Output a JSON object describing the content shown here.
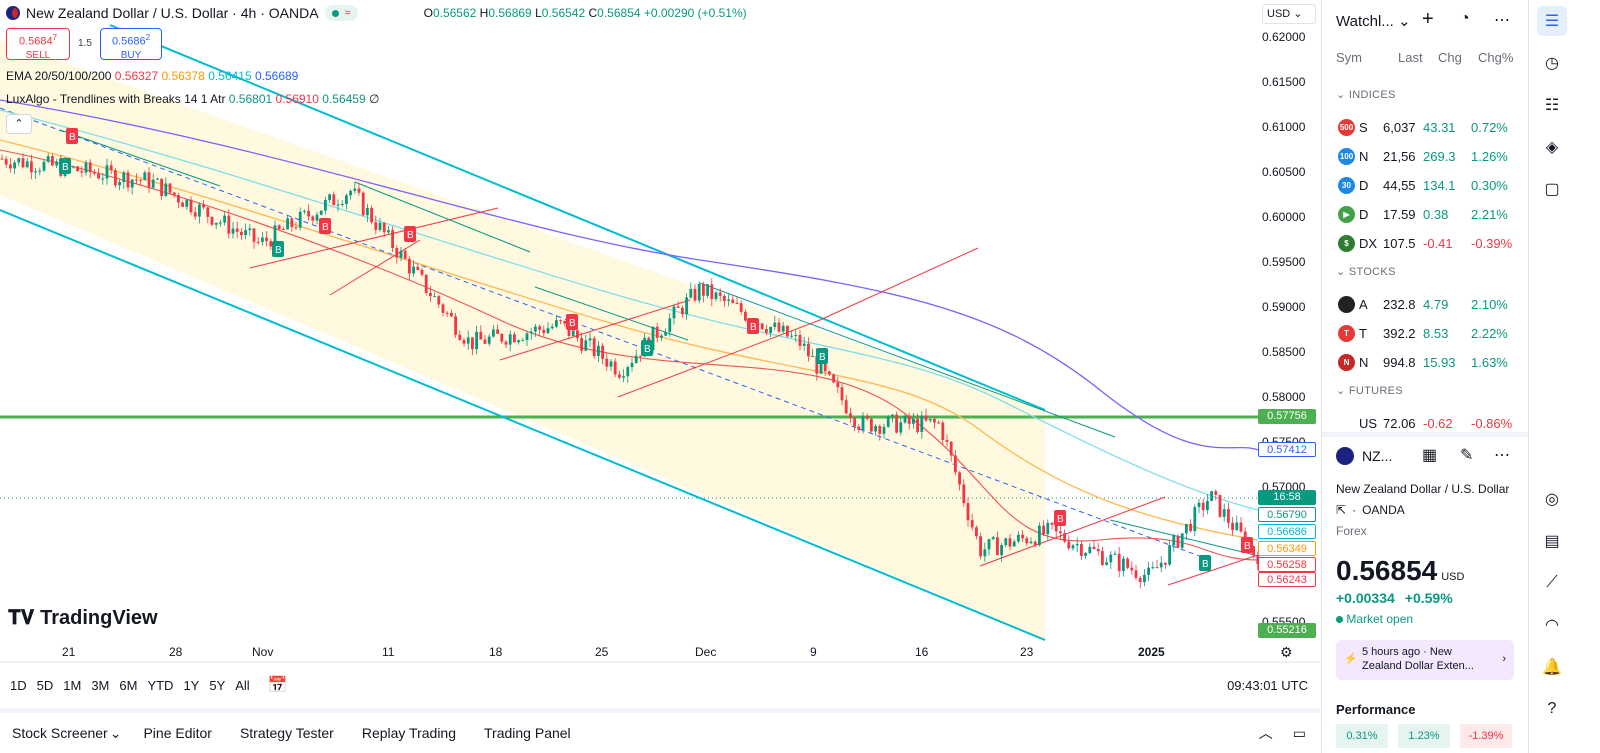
{
  "header": {
    "symbol_title": "New Zealand Dollar / U.S. Dollar · 4h · OANDA",
    "ohlc": {
      "O": "0.56562",
      "H": "0.56869",
      "L": "0.56542",
      "C": "0.56854",
      "change": "+0.00290 (+0.51%)"
    },
    "sell": {
      "price": "0.5684",
      "sup": "7",
      "label": "SELL"
    },
    "buy": {
      "price": "0.5686",
      "sup": "2",
      "label": "BUY"
    },
    "spread": "1.5",
    "currency_select": "USD"
  },
  "indicators": {
    "ema": {
      "label": "EMA 20/50/100/200",
      "values": [
        "0.56327",
        "0.56378",
        "0.56415",
        "0.56689"
      ],
      "colors": [
        "#f23645",
        "#ff9800",
        "#00e5ff",
        "#2962ff"
      ]
    },
    "luxalgo": {
      "label": "LuxAlgo - Trendlines with Breaks 14 1 Atr",
      "values": [
        "0.56801",
        "0.56910",
        "0.56459"
      ],
      "tail": "∅"
    }
  },
  "price_axis": {
    "ticks": [
      "0.62000",
      "0.61500",
      "0.61000",
      "0.60500",
      "0.60000",
      "0.59500",
      "0.59000",
      "0.58500",
      "0.58000",
      "0.57500",
      "0.57000",
      "0.56500",
      "0.56000",
      "0.55500"
    ],
    "labels": [
      {
        "text": "0.57756",
        "bg": "#4caf50"
      },
      {
        "text": "0.57412",
        "bg": "#ffffff",
        "fg": "#2962ff"
      },
      {
        "text": "16:58",
        "bg": "#089981"
      },
      {
        "text": "0.56790",
        "bg": "#ffffff",
        "fg": "#089981"
      },
      {
        "text": "0.56686",
        "bg": "#ffffff",
        "fg": "#00bcd4"
      },
      {
        "text": "0.56349",
        "bg": "#ffffff",
        "fg": "#ff9800"
      },
      {
        "text": "0.56258",
        "bg": "#ffffff",
        "fg": "#f23645"
      },
      {
        "text": "0.56243",
        "bg": "#ffffff",
        "fg": "#f23645"
      },
      {
        "text": "0.55216",
        "bg": "#4caf50"
      }
    ]
  },
  "time_axis": {
    "ticks": [
      "21",
      "28",
      "Nov",
      "11",
      "18",
      "25",
      "Dec",
      "9",
      "16",
      "23",
      "2025"
    ]
  },
  "logo": "TradingView",
  "timeframes": [
    "1D",
    "5D",
    "1M",
    "3M",
    "6M",
    "YTD",
    "1Y",
    "5Y",
    "All"
  ],
  "clock": "09:43:01 UTC",
  "panels": [
    "Stock Screener",
    "Pine Editor",
    "Strategy Tester",
    "Replay Trading",
    "Trading Panel"
  ],
  "watchlist": {
    "title": "Watchl...",
    "columns": [
      "Sym",
      "Last",
      "Chg",
      "Chg%"
    ],
    "sections": [
      {
        "name": "INDICES",
        "rows": [
          {
            "badge": "500",
            "badge_color": "#e53935",
            "sym": "S",
            "last": "6,037",
            "chg": "43.31",
            "chgp": "0.72%",
            "dir": "pos"
          },
          {
            "badge": "100",
            "badge_color": "#1e88e5",
            "sym": "N",
            "last": "21,56",
            "chg": "269.3",
            "chgp": "1.26%",
            "dir": "pos"
          },
          {
            "badge": "30",
            "badge_color": "#1e88e5",
            "sym": "D",
            "last": "44,55",
            "chg": "134.1",
            "chgp": "0.30%",
            "dir": "pos"
          },
          {
            "badge": "▶",
            "badge_color": "#43a047",
            "sym": "D",
            "last": "17.59",
            "chg": "0.38",
            "chgp": "2.21%",
            "dir": "pos"
          },
          {
            "badge": "$",
            "badge_color": "#2e7d32",
            "sym": "DX",
            "last": "107.5",
            "chg": "-0.41",
            "chgp": "-0.39%",
            "dir": "neg"
          }
        ]
      },
      {
        "name": "STOCKS",
        "rows": [
          {
            "badge": "",
            "badge_color": "#222222",
            "sym": "A",
            "last": "232.8",
            "chg": "4.79",
            "chgp": "2.10%",
            "dir": "pos"
          },
          {
            "badge": "T",
            "badge_color": "#e53935",
            "sym": "T",
            "last": "392.2",
            "chg": "8.53",
            "chgp": "2.22%",
            "dir": "pos"
          },
          {
            "badge": "N",
            "badge_color": "#c62828",
            "sym": "N",
            "last": "994.8",
            "chg": "15.93",
            "chgp": "1.63%",
            "dir": "pos"
          }
        ]
      },
      {
        "name": "FUTURES",
        "rows": [
          {
            "badge": "",
            "badge_color": "#ffffff",
            "sym": "US",
            "last": "72.06",
            "chg": "-0.62",
            "chgp": "-0.86%",
            "dir": "neg"
          }
        ]
      }
    ]
  },
  "details": {
    "short": "NZ...",
    "name": "New Zealand Dollar / U.S. Dollar",
    "exchange": "OANDA",
    "type": "Forex",
    "price_main": "0.568",
    "price_big": "54",
    "currency": "USD",
    "change": "+0.00334",
    "change_pct": "+0.59%",
    "market": "Market open",
    "news": "5 hours ago · New Zealand Dollar Exten...",
    "performance_title": "Performance",
    "performance": [
      "0.31%",
      "1.23%",
      "-1.39%"
    ]
  },
  "colors": {
    "up": "#089981",
    "down": "#f23645",
    "accent": "#2962ff",
    "channel": "#00bcd4",
    "support": "#4caf50"
  }
}
